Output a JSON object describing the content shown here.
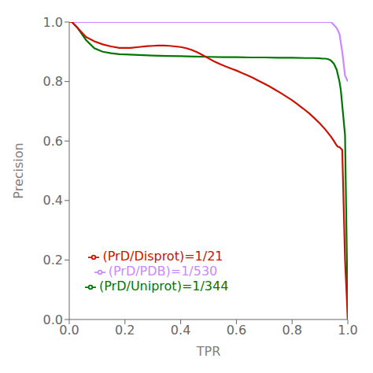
{
  "chart_data": {
    "type": "line",
    "xlabel": "TPR",
    "ylabel": "Precision",
    "xlim": [
      0,
      1.0
    ],
    "ylim": [
      0,
      1.0
    ],
    "xticks": [
      {
        "value": 0.0,
        "label": "0.0"
      },
      0.2,
      0.4,
      0.6,
      0.8,
      {
        "value": 1.0,
        "label": "1.0"
      }
    ],
    "yticks": [
      {
        "value": 0.0,
        "label": "0.0"
      },
      0.2,
      0.4,
      0.6,
      0.8,
      {
        "value": 1.0,
        "label": "1.0"
      }
    ],
    "grid": false,
    "legend": "lower left",
    "series": [
      {
        "name": "(PrD/PDB)=1/530",
        "color": "#CC88FF",
        "x": [
          0.0,
          0.005,
          0.01,
          0.02,
          0.05,
          0.1,
          0.2,
          0.3,
          0.4,
          0.5,
          0.6,
          0.7,
          0.8,
          0.87,
          0.9,
          0.92,
          0.93,
          0.94,
          0.95,
          0.96,
          0.97,
          0.975,
          0.98,
          0.985,
          0.99,
          1.0
        ],
        "values": [
          1.0,
          1.0,
          1.0,
          1.0,
          1.0,
          1.0,
          1.0,
          1.0,
          1.0,
          1.0,
          1.0,
          1.0,
          1.0,
          1.0,
          1.0,
          1.0,
          1.0,
          1.0,
          0.99,
          0.98,
          0.96,
          0.93,
          0.9,
          0.86,
          0.82,
          0.8
        ]
      },
      {
        "name": "(PrD/Uniprot)=1/344",
        "color": "#007700",
        "x": [
          0.0,
          0.01,
          0.03,
          0.06,
          0.09,
          0.12,
          0.15,
          0.18,
          0.2,
          0.25,
          0.3,
          0.35,
          0.4,
          0.45,
          0.5,
          0.55,
          0.6,
          0.65,
          0.7,
          0.75,
          0.8,
          0.85,
          0.88,
          0.9,
          0.91,
          0.92,
          0.93,
          0.935,
          0.94,
          0.95,
          0.96,
          0.965,
          0.97,
          0.975,
          0.98,
          0.99,
          1.0
        ],
        "values": [
          1.0,
          1.0,
          0.98,
          0.94,
          0.912,
          0.9,
          0.895,
          0.892,
          0.891,
          0.889,
          0.887,
          0.886,
          0.885,
          0.884,
          0.883,
          0.882,
          0.882,
          0.881,
          0.881,
          0.88,
          0.88,
          0.879,
          0.879,
          0.878,
          0.877,
          0.877,
          0.875,
          0.873,
          0.87,
          0.86,
          0.84,
          0.82,
          0.8,
          0.77,
          0.72,
          0.62,
          0.0
        ]
      },
      {
        "name": "(PrD/Disprot)=1/21",
        "color": "#CC1100",
        "x": [
          0.0,
          0.01,
          0.03,
          0.06,
          0.09,
          0.12,
          0.15,
          0.18,
          0.2,
          0.22,
          0.25,
          0.28,
          0.3,
          0.32,
          0.34,
          0.36,
          0.38,
          0.4,
          0.42,
          0.44,
          0.46,
          0.48,
          0.5,
          0.52,
          0.54,
          0.56,
          0.58,
          0.6,
          0.62,
          0.64,
          0.66,
          0.68,
          0.7,
          0.72,
          0.74,
          0.76,
          0.78,
          0.8,
          0.82,
          0.84,
          0.86,
          0.88,
          0.9,
          0.92,
          0.94,
          0.95,
          0.96,
          0.965,
          0.97,
          0.975,
          0.98,
          0.99,
          1.0
        ],
        "values": [
          1.0,
          1.0,
          0.98,
          0.95,
          0.935,
          0.925,
          0.918,
          0.913,
          0.913,
          0.913,
          0.916,
          0.919,
          0.92,
          0.921,
          0.921,
          0.92,
          0.918,
          0.916,
          0.912,
          0.906,
          0.898,
          0.888,
          0.878,
          0.868,
          0.859,
          0.851,
          0.844,
          0.837,
          0.829,
          0.821,
          0.812,
          0.802,
          0.793,
          0.783,
          0.772,
          0.761,
          0.749,
          0.737,
          0.723,
          0.709,
          0.694,
          0.677,
          0.659,
          0.638,
          0.614,
          0.6,
          0.585,
          0.58,
          0.58,
          0.575,
          0.57,
          0.2,
          0.0
        ]
      }
    ]
  }
}
